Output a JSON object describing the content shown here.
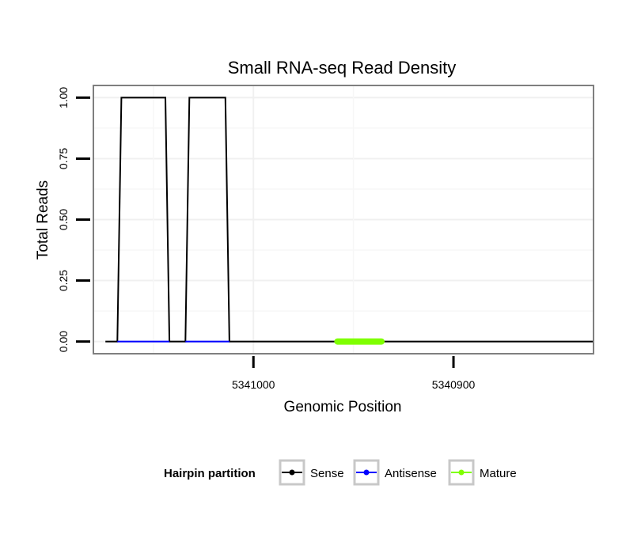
{
  "chart_data": {
    "type": "line",
    "title": "Small RNA-seq Read Density",
    "xlabel": "Genomic Position",
    "ylabel": "Total Reads",
    "x_reversed": true,
    "xlim": [
      5341080,
      5340830
    ],
    "ylim": [
      -0.05,
      1.05
    ],
    "x_ticks": [
      5341000,
      5340900
    ],
    "x_tick_labels": [
      "5341000",
      "5340900"
    ],
    "y_ticks": [
      0.0,
      0.25,
      0.5,
      0.75,
      1.0
    ],
    "y_tick_labels": [
      "0.00",
      "0.25",
      "0.50",
      "0.75",
      "1.00"
    ],
    "grid": true,
    "legend_position": "bottom",
    "legend_title": "Hairpin partition",
    "series": [
      {
        "name": "Sense",
        "color": "#000000",
        "x": [
          5341074,
          5341068,
          5341066,
          5341044,
          5341042,
          5341034,
          5341032,
          5341014,
          5341012,
          5340830
        ],
        "y": [
          0,
          0,
          1,
          1,
          0,
          0,
          1,
          1,
          0,
          0
        ]
      },
      {
        "name": "Antisense",
        "color": "#0000ff",
        "x": [
          5341068,
          5341042,
          5341034,
          5341012
        ],
        "y": [
          0,
          0,
          0,
          0
        ],
        "segments": [
          [
            0,
            1
          ],
          [
            2,
            3
          ]
        ]
      },
      {
        "name": "Mature",
        "color": "#7fff00",
        "x": [
          5340958,
          5340936
        ],
        "y": [
          0,
          0
        ]
      }
    ]
  }
}
